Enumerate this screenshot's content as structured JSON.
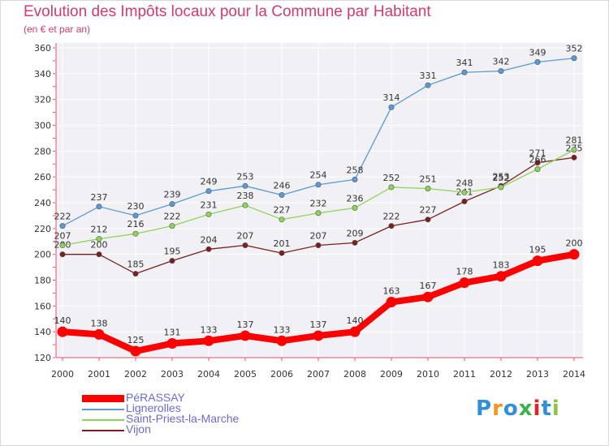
{
  "title": "Evolution des Impôts locaux pour la Commune par Habitant",
  "subtitle": "(en € et par an)",
  "logo": {
    "letters": [
      "P",
      "r",
      "o",
      "x",
      "i",
      "t",
      "i"
    ],
    "colors": [
      "#2f8fd8",
      "#f7941d",
      "#2f8fd8",
      "#3cb44b",
      "#e8202a",
      "#2f8fd8",
      "#8dc63f"
    ]
  },
  "chart_data": {
    "type": "line",
    "x": [
      2000,
      2001,
      2002,
      2003,
      2004,
      2005,
      2006,
      2007,
      2008,
      2009,
      2010,
      2011,
      2012,
      2013,
      2014
    ],
    "ylim": [
      120,
      360
    ],
    "yticks": [
      120,
      140,
      160,
      180,
      200,
      220,
      240,
      260,
      280,
      300,
      320,
      340,
      360
    ],
    "grid": true,
    "legend_position": "bottom-left",
    "series": [
      {
        "name": "PéRASSAY",
        "color": "#ff0000",
        "values": [
          140,
          138,
          125,
          131,
          133,
          137,
          133,
          137,
          140,
          163,
          167,
          178,
          183,
          195,
          200
        ],
        "labels": [
          "140",
          "138",
          "125",
          "131",
          "133",
          "137",
          "133",
          "137",
          "140",
          "163",
          "167",
          "178",
          "183",
          "195",
          "200"
        ]
      },
      {
        "name": "Lignerolles",
        "color": "#5b9bd5",
        "values": [
          222,
          237,
          230,
          239,
          249,
          253,
          246,
          254,
          258,
          314,
          331,
          341,
          342,
          349,
          352
        ],
        "labels": [
          "222",
          "237",
          "230",
          "239",
          "249",
          "253",
          "246",
          "254",
          "258",
          "314",
          "331",
          "341",
          "342",
          "349",
          "352"
        ]
      },
      {
        "name": "Saint-Priest-la-Marche",
        "color": "#8fd45a",
        "values": [
          207,
          212,
          216,
          222,
          231,
          238,
          227,
          232,
          236,
          252,
          251,
          248,
          252,
          266,
          281
        ],
        "labels": [
          "207",
          "212",
          "216",
          "222",
          "231",
          "238",
          "227",
          "232",
          "236",
          "252",
          "251",
          "248",
          "252",
          "266",
          "281"
        ]
      },
      {
        "name": "Vijon",
        "color": "#7a1f1f",
        "values": [
          200,
          200,
          185,
          195,
          204,
          207,
          201,
          207,
          209,
          222,
          227,
          241,
          253,
          271,
          275
        ],
        "labels": [
          "200",
          "200",
          "185",
          "195",
          "204",
          "207",
          "201",
          "207",
          "209",
          "222",
          "227",
          "241",
          "253",
          "271",
          "275"
        ]
      }
    ]
  }
}
